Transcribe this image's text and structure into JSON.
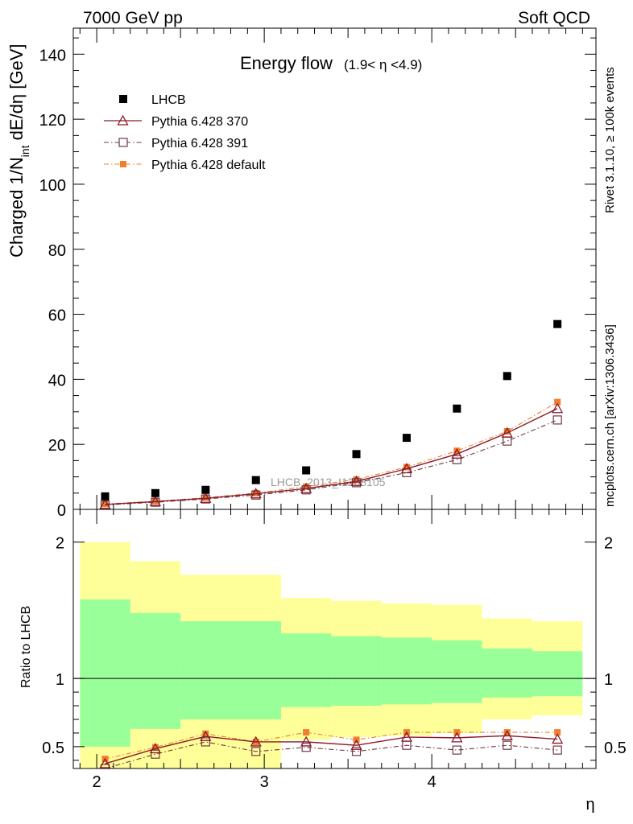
{
  "header": {
    "left": "7000 GeV pp",
    "right": "Soft QCD"
  },
  "chart_data": [
    {
      "panel": "main",
      "type": "scatter",
      "title": "Energy flow",
      "title_range": "(1.9< η <4.9)",
      "ylabel": {
        "main": "Charged 1/N",
        "sub": "int",
        "rest": " dE/dη [GeV]"
      },
      "xlim": [
        1.86,
        4.98
      ],
      "ylim": [
        0,
        148
      ],
      "yticks": [
        "0",
        "20",
        "40",
        "60",
        "80",
        "100",
        "120",
        "140"
      ],
      "watermark": "LHCB_2013_I1208105",
      "x": [
        2.05,
        2.35,
        2.65,
        2.95,
        3.25,
        3.55,
        3.85,
        4.15,
        4.45,
        4.75
      ],
      "bin_edges": [
        1.9,
        2.2,
        2.5,
        2.8,
        3.1,
        3.4,
        3.7,
        4.0,
        4.3,
        4.6,
        4.9
      ],
      "series": [
        {
          "name": "LHCB",
          "style": "data",
          "color": "#000000",
          "values": [
            4.0,
            5.0,
            6.0,
            9.0,
            12.0,
            17.0,
            22.0,
            31.0,
            41.0,
            57.0
          ]
        },
        {
          "name": "Pythia 6.428 370",
          "style": "triangle",
          "color": "#8b1a2b",
          "values": [
            1.5,
            2.4,
            3.4,
            4.8,
            6.4,
            8.6,
            12.5,
            17.0,
            23.5,
            31.0
          ]
        },
        {
          "name": "Pythia 6.428 391",
          "style": "square",
          "color": "#6b3a44",
          "values": [
            1.35,
            2.2,
            3.2,
            4.4,
            6.0,
            8.2,
            11.3,
            15.3,
            21.0,
            27.5
          ]
        },
        {
          "name": "Pythia 6.428 default",
          "style": "dot",
          "color": "#ef7f2e",
          "values": [
            1.65,
            2.5,
            3.6,
            5.0,
            7.0,
            9.2,
            13.0,
            18.0,
            24.0,
            33.0
          ]
        }
      ]
    },
    {
      "panel": "ratio",
      "type": "line",
      "ylabel": "Ratio to LHCB",
      "xlabel": "η",
      "ylim": [
        0.34,
        2.24
      ],
      "yticks": [
        "0.5",
        "1",
        "2"
      ],
      "xticks": [
        "2",
        "3",
        "4"
      ],
      "bands": {
        "stat_color": "#99ff99",
        "total_color": "#ffff99",
        "stat": [
          [
            0.5,
            1.58
          ],
          [
            0.63,
            1.48
          ],
          [
            0.7,
            1.42
          ],
          [
            0.7,
            1.42
          ],
          [
            0.79,
            1.33
          ],
          [
            0.8,
            1.31
          ],
          [
            0.81,
            1.3
          ],
          [
            0.82,
            1.28
          ],
          [
            0.86,
            1.22
          ],
          [
            0.87,
            1.2
          ]
        ],
        "total": [
          [
            0.0,
            2.0
          ],
          [
            0.0,
            1.86
          ],
          [
            0.0,
            1.76
          ],
          [
            0.0,
            1.76
          ],
          [
            0.55,
            1.59
          ],
          [
            0.57,
            1.57
          ],
          [
            0.58,
            1.55
          ],
          [
            0.6,
            1.54
          ],
          [
            0.7,
            1.44
          ],
          [
            0.73,
            1.42
          ]
        ]
      },
      "series": [
        {
          "name": "Pythia 6.428 370",
          "style": "triangle",
          "color": "#8b1a2b",
          "values": [
            0.375,
            0.485,
            0.575,
            0.535,
            0.535,
            0.51,
            0.57,
            0.565,
            0.58,
            0.555
          ]
        },
        {
          "name": "Pythia 6.428 391",
          "style": "square",
          "color": "#6b3a44",
          "values": [
            0.34,
            0.445,
            0.535,
            0.465,
            0.495,
            0.465,
            0.51,
            0.475,
            0.51,
            0.475
          ]
        },
        {
          "name": "Pythia 6.428 default",
          "style": "dot",
          "color": "#ef7f2e",
          "values": [
            0.41,
            0.495,
            0.595,
            0.535,
            0.605,
            0.55,
            0.605,
            0.605,
            0.605,
            0.605
          ]
        }
      ]
    }
  ],
  "side_labels": {
    "rivet": "Rivet 3.1.10, ≥ 100k events",
    "mcplots": "mcplots.cern.ch [arXiv:1306.3436]"
  }
}
